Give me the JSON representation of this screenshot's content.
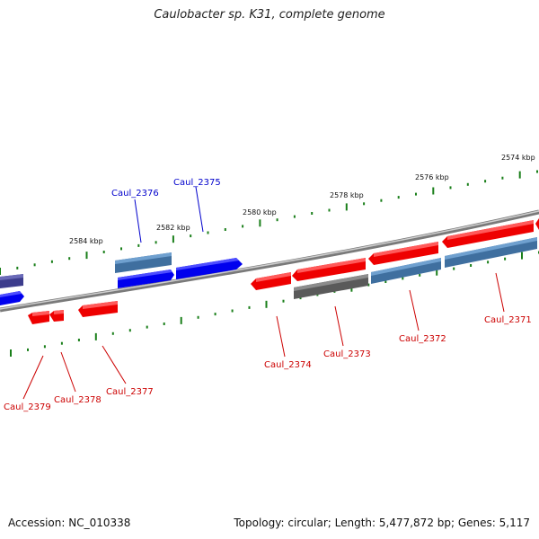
{
  "title": "Caulobacter sp. K31, complete genome",
  "footer": {
    "accession": "Accession: NC_010338",
    "topology": "Topology: circular; Length: 5,477,872 bp; Genes: 5,117"
  },
  "colors": {
    "strand_plus": "#0000ee",
    "strand_plus_alt": "#4682b4",
    "strand_minus": "#ee0000",
    "strand_other": "#666666",
    "backbone": "#888888",
    "tick": "#1a7f1a",
    "label_plus": "#0000cc",
    "label_minus": "#cc0000"
  },
  "kbp_labels": [
    "2574 kbp",
    "2576 kbp",
    "2578 kbp",
    "2580 kbp",
    "2582 kbp",
    "2584 kbp"
  ],
  "genes_plus": [
    {
      "name": "Caul_2376"
    },
    {
      "name": "Caul_2375"
    }
  ],
  "genes_minus": [
    {
      "name": "Caul_2371"
    },
    {
      "name": "Caul_2372"
    },
    {
      "name": "Caul_2373"
    },
    {
      "name": "Caul_2374"
    },
    {
      "name": "Caul_2377"
    },
    {
      "name": "Caul_2378"
    },
    {
      "name": "Caul_2379"
    }
  ]
}
